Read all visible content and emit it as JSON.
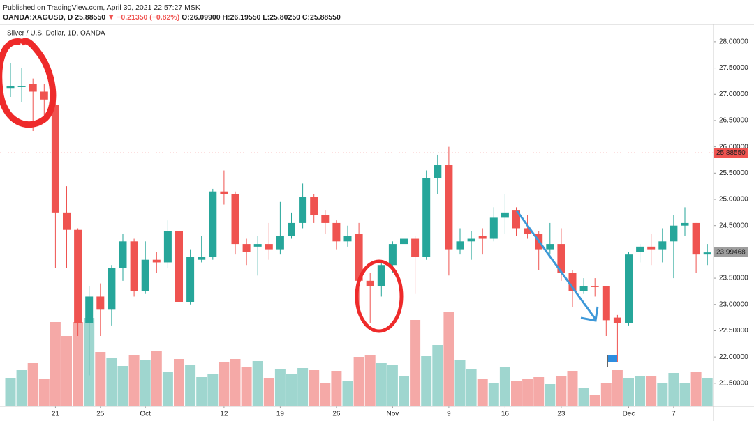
{
  "header": {
    "published": "Published on TradingView.com, April 30, 2021 22:57:27 MSK",
    "symbol": "OANDA:XAGUSD, D",
    "price": "25.88550",
    "change": "▼ −0.21350 (−0.82%)",
    "ohlc": "O:26.09900 H:26.19550 L:25.80250 C:25.88550"
  },
  "chart_data": {
    "type": "candlestick",
    "title": "Silver / U.S. Dollar, 1D, OANDA",
    "up_color": "#26a69a",
    "down_color": "#ef5350",
    "up_volume_color": "#9fd6cf",
    "down_volume_color": "#f5a9a7",
    "open": [
      27.12,
      27.15,
      27.2,
      27.05,
      26.8,
      24.75,
      24.42,
      22.65,
      23.15,
      22.9,
      23.7,
      24.2,
      23.25,
      23.85,
      23.8,
      24.4,
      23.05,
      23.85,
      23.9,
      25.15,
      25.1,
      24.15,
      24.1,
      24.15,
      24.05,
      24.3,
      24.55,
      25.05,
      24.7,
      24.55,
      24.2,
      24.35,
      23.45,
      23.35,
      23.75,
      24.15,
      24.25,
      23.9,
      25.4,
      25.65,
      24.05,
      24.2,
      24.3,
      24.25,
      24.65,
      24.8,
      24.45,
      24.35,
      24.05,
      24.15,
      23.6,
      23.25,
      23.35,
      23.35,
      22.75,
      22.65,
      24.0,
      24.1,
      24.05,
      24.2,
      24.5,
      24.55,
      23.95
    ],
    "high": [
      27.6,
      27.5,
      27.3,
      27.2,
      27.0,
      25.25,
      24.45,
      23.35,
      23.4,
      23.75,
      24.35,
      24.25,
      24.2,
      24.0,
      24.6,
      24.45,
      24.05,
      24.3,
      25.2,
      25.55,
      25.15,
      24.25,
      24.3,
      24.55,
      24.95,
      24.75,
      25.3,
      25.1,
      24.8,
      24.6,
      24.5,
      24.55,
      23.6,
      23.8,
      24.2,
      24.35,
      24.3,
      25.55,
      25.85,
      26.0,
      24.45,
      24.4,
      24.45,
      24.85,
      25.1,
      24.85,
      24.7,
      24.4,
      24.55,
      24.45,
      23.65,
      23.5,
      23.5,
      23.35,
      22.8,
      24.0,
      24.15,
      24.35,
      24.45,
      24.7,
      24.85,
      24.55,
      24.15
    ],
    "low": [
      26.95,
      26.85,
      26.3,
      26.6,
      23.7,
      23.7,
      22.4,
      21.65,
      22.4,
      22.6,
      23.45,
      23.15,
      23.2,
      23.6,
      23.7,
      22.85,
      23.0,
      23.8,
      23.85,
      24.9,
      23.95,
      23.75,
      23.55,
      23.85,
      23.95,
      24.25,
      24.45,
      24.55,
      24.35,
      24.05,
      24.1,
      22.85,
      22.65,
      23.15,
      23.6,
      24.0,
      23.2,
      23.85,
      25.1,
      23.55,
      23.95,
      23.85,
      23.95,
      24.2,
      24.35,
      24.3,
      24.25,
      23.65,
      23.95,
      23.45,
      22.95,
      23.2,
      23.15,
      22.4,
      21.9,
      22.6,
      23.8,
      23.75,
      23.8,
      23.5,
      24.3,
      23.6,
      23.75
    ],
    "close": [
      27.15,
      27.15,
      27.05,
      26.9,
      24.75,
      24.42,
      22.65,
      23.15,
      22.9,
      23.7,
      24.2,
      23.25,
      23.85,
      23.8,
      24.4,
      23.05,
      23.9,
      23.9,
      25.15,
      25.1,
      24.15,
      24.0,
      24.15,
      24.05,
      24.3,
      24.55,
      25.05,
      24.7,
      24.55,
      24.2,
      24.3,
      23.45,
      23.35,
      23.75,
      24.15,
      24.25,
      23.9,
      25.4,
      25.65,
      24.05,
      24.2,
      24.25,
      24.25,
      24.65,
      24.75,
      24.45,
      24.35,
      24.05,
      24.15,
      23.6,
      23.25,
      23.35,
      23.33,
      22.7,
      22.65,
      23.95,
      24.1,
      24.05,
      24.2,
      24.5,
      24.55,
      23.95,
      23.99
    ],
    "volume": [
      41,
      52,
      62,
      39,
      121,
      101,
      121,
      127,
      78,
      70,
      58,
      74,
      66,
      80,
      49,
      68,
      60,
      42,
      47,
      63,
      68,
      57,
      65,
      40,
      54,
      46,
      55,
      52,
      34,
      51,
      36,
      71,
      74,
      62,
      60,
      44,
      124,
      72,
      88,
      136,
      67,
      54,
      39,
      33,
      57,
      37,
      39,
      42,
      32,
      44,
      51,
      27,
      17,
      34,
      52,
      41,
      44,
      44,
      34,
      48,
      34,
      49,
      41
    ],
    "xticks": [
      {
        "value": 4,
        "label": "21"
      },
      {
        "value": 8,
        "label": "25"
      },
      {
        "value": 12,
        "label": "Oct"
      },
      {
        "value": 19,
        "label": "12"
      },
      {
        "value": 24,
        "label": "19"
      },
      {
        "value": 29,
        "label": "26"
      },
      {
        "value": 34,
        "label": "Nov"
      },
      {
        "value": 39,
        "label": "9"
      },
      {
        "value": 44,
        "label": "16"
      },
      {
        "value": 49,
        "label": "23"
      },
      {
        "value": 55,
        "label": "Dec"
      },
      {
        "value": 59,
        "label": "7"
      }
    ],
    "ylim": [
      21.06,
      28.33
    ],
    "yticks": [
      {
        "value": 28,
        "label": "28.00000"
      },
      {
        "value": 27.5,
        "label": "27.50000"
      },
      {
        "value": 27,
        "label": "27.00000"
      },
      {
        "value": 26.5,
        "label": "26.50000"
      },
      {
        "value": 26,
        "label": "26.00000"
      },
      {
        "value": 25.5,
        "label": "25.50000"
      },
      {
        "value": 25,
        "label": "25.00000"
      },
      {
        "value": 24.5,
        "label": "24.50000"
      },
      {
        "value": 24,
        "label": "24.00000"
      },
      {
        "value": 23.5,
        "label": "23.50000"
      },
      {
        "value": 23,
        "label": "23.00000"
      },
      {
        "value": 22.5,
        "label": "22.50000"
      },
      {
        "value": 22,
        "label": "22.00000"
      },
      {
        "value": 21.5,
        "label": "21.50000"
      }
    ],
    "last_price": {
      "value": 25.8855,
      "label": "25.88550",
      "color": "#ef5350"
    },
    "marker_price": {
      "value": 23.99468,
      "label": "23.99468",
      "color": "#9e9e9e"
    }
  }
}
